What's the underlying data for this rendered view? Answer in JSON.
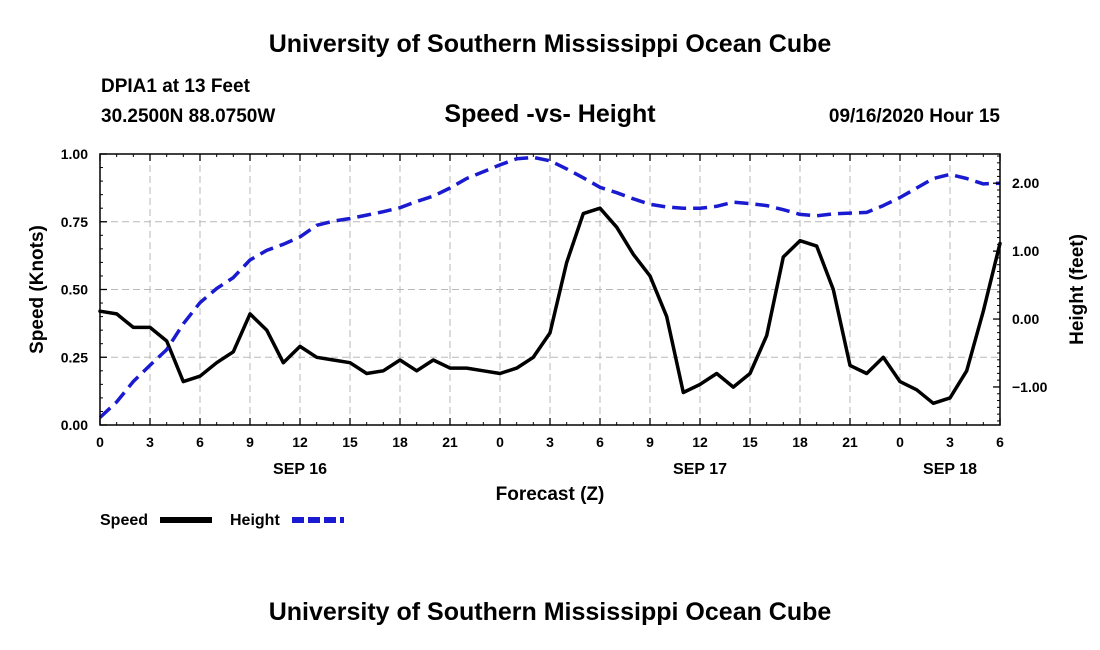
{
  "header": {
    "title": "University of Southern Mississippi Ocean Cube"
  },
  "footer": {
    "title": "University of Southern Mississippi Ocean Cube"
  },
  "station": {
    "name": "DPIA1 at 13 Feet",
    "coords": "30.2500N 88.0750W"
  },
  "chart_data": {
    "type": "line",
    "title": "Speed -vs- Height",
    "date": "09/16/2020 Hour 15",
    "xlabel": "Forecast (Z)",
    "ylabel": "Speed (Knots)",
    "y2label": "Height (feet)",
    "xlim": [
      0,
      54
    ],
    "ylim": [
      0,
      1
    ],
    "y2lim": [
      -1.56,
      2.43
    ],
    "grid": true,
    "x_ticks": [
      0,
      3,
      6,
      9,
      12,
      15,
      18,
      21,
      24,
      27,
      30,
      33,
      36,
      39,
      42,
      45,
      48,
      51,
      54
    ],
    "x_tick_labels": [
      "0",
      "3",
      "6",
      "9",
      "12",
      "15",
      "18",
      "21",
      "0",
      "3",
      "6",
      "9",
      "12",
      "15",
      "18",
      "21",
      "0",
      "3",
      "6"
    ],
    "date_labels": [
      {
        "x": 12,
        "label": "SEP 16"
      },
      {
        "x": 36,
        "label": "SEP 17"
      },
      {
        "x": 51,
        "label": "SEP 18"
      }
    ],
    "y_ticks": [
      0,
      0.25,
      0.5,
      0.75,
      1.0
    ],
    "y_tick_labels": [
      "0.00",
      "0.25",
      "0.50",
      "0.75",
      "1.00"
    ],
    "y2_ticks": [
      -1,
      0,
      1,
      2
    ],
    "y2_tick_labels": [
      "−1.00",
      "0.00",
      "1.00",
      "2.00"
    ],
    "legend": [
      {
        "name": "Speed",
        "color": "#000000",
        "dash": "solid"
      },
      {
        "name": "Height",
        "color": "#1a1ad0",
        "dash": "dashed"
      }
    ],
    "series": [
      {
        "name": "Speed",
        "axis": "left",
        "color": "#000000",
        "x": [
          0,
          1,
          2,
          3,
          4,
          5,
          6,
          7,
          8,
          9,
          10,
          11,
          12,
          13,
          14,
          15,
          16,
          17,
          18,
          19,
          20,
          21,
          22,
          23,
          24,
          25,
          26,
          27,
          28,
          29,
          30,
          31,
          32,
          33,
          34,
          35,
          36,
          37,
          38,
          39,
          40,
          41,
          42,
          43,
          44,
          45,
          46,
          47,
          48,
          49,
          50,
          51,
          52,
          53,
          54
        ],
        "values": [
          0.42,
          0.41,
          0.36,
          0.36,
          0.31,
          0.16,
          0.18,
          0.23,
          0.27,
          0.41,
          0.35,
          0.23,
          0.29,
          0.25,
          0.24,
          0.23,
          0.19,
          0.2,
          0.24,
          0.2,
          0.24,
          0.21,
          0.21,
          0.2,
          0.19,
          0.21,
          0.25,
          0.34,
          0.6,
          0.78,
          0.8,
          0.73,
          0.63,
          0.55,
          0.4,
          0.12,
          0.15,
          0.19,
          0.14,
          0.19,
          0.33,
          0.62,
          0.68,
          0.66,
          0.5,
          0.22,
          0.19,
          0.25,
          0.16,
          0.13,
          0.08,
          0.1,
          0.2,
          0.42,
          0.67
        ]
      },
      {
        "name": "Height",
        "axis": "right",
        "color": "#1a1ad0",
        "x": [
          0,
          1,
          2,
          3,
          4,
          5,
          6,
          7,
          8,
          9,
          10,
          11,
          12,
          13,
          14,
          15,
          16,
          17,
          18,
          19,
          20,
          21,
          22,
          23,
          24,
          25,
          26,
          27,
          28,
          29,
          30,
          31,
          32,
          33,
          34,
          35,
          36,
          37,
          38,
          39,
          40,
          41,
          42,
          43,
          44,
          45,
          46,
          47,
          48,
          49,
          50,
          51,
          52,
          53,
          54
        ],
        "values": [
          -1.45,
          -1.22,
          -0.92,
          -0.68,
          -0.45,
          -0.07,
          0.24,
          0.45,
          0.61,
          0.87,
          1.01,
          1.1,
          1.21,
          1.38,
          1.44,
          1.48,
          1.53,
          1.58,
          1.64,
          1.73,
          1.81,
          1.93,
          2.07,
          2.17,
          2.27,
          2.36,
          2.38,
          2.33,
          2.21,
          2.08,
          1.94,
          1.86,
          1.77,
          1.69,
          1.65,
          1.63,
          1.63,
          1.66,
          1.72,
          1.7,
          1.67,
          1.61,
          1.54,
          1.52,
          1.55,
          1.56,
          1.57,
          1.67,
          1.79,
          1.93,
          2.07,
          2.13,
          2.07,
          1.99,
          2.0
        ]
      }
    ]
  }
}
